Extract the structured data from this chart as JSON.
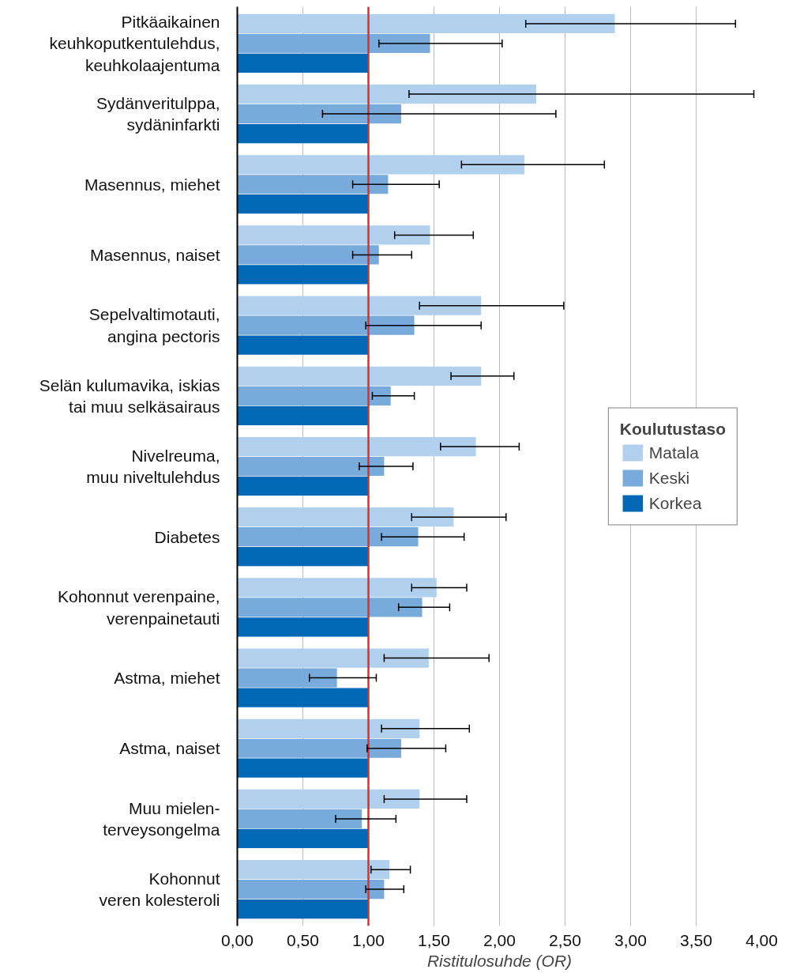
{
  "chart_data": {
    "type": "bar",
    "orientation": "horizontal",
    "xlabel": "Ristitulosuhde (OR)",
    "legend_title": "Koulutustaso",
    "legend": "right",
    "grid": "x",
    "categories": [
      "Pitkäaikainen\nkeuhkoputkentulehdus,\nkeuhkolaajentuma",
      "Sydänveritulppa,\nsydäninfarkti",
      "Masennus, miehet",
      "Masennus, naiset",
      "Sepelvaltimotauti,\nangina pectoris",
      "Selän kulumavika, iskias\ntai muu selkäsairaus",
      "Nivelreuma,\nmuu niveltulehdus",
      "Diabetes",
      "Kohonnut verenpaine,\nverenpainetauti",
      "Astma, miehet",
      "Astma, naiset",
      "Muu mielen-\nterveysongelma",
      "Kohonnut\nveren kolesteroli"
    ],
    "xlim": [
      0,
      4
    ],
    "xticks": [
      {
        "value": 0,
        "label": "0,00"
      },
      {
        "value": 0.5,
        "label": "0,50"
      },
      {
        "value": 1,
        "label": "1,00"
      },
      {
        "value": 1.5,
        "label": "1,50"
      },
      {
        "value": 2,
        "label": "2,00"
      },
      {
        "value": 2.5,
        "label": "2,50"
      },
      {
        "value": 3,
        "label": "3,00"
      },
      {
        "value": 3.5,
        "label": "3,50"
      },
      {
        "value": 4,
        "label": "4,00"
      }
    ],
    "ref_lines": [
      {
        "axis": "x",
        "value": 1,
        "label": null,
        "color": "#d9302a"
      }
    ],
    "series": [
      {
        "name": "Matala",
        "color": "#b0d0ee",
        "values": [
          2.88,
          2.28,
          2.19,
          1.47,
          1.86,
          1.86,
          1.82,
          1.65,
          1.52,
          1.46,
          1.39,
          1.39,
          1.16
        ],
        "errors": [
          [
            2.2,
            3.8
          ],
          [
            1.31,
            3.94
          ],
          [
            1.71,
            2.8
          ],
          [
            1.2,
            1.8
          ],
          [
            1.39,
            2.49
          ],
          [
            1.63,
            2.11
          ],
          [
            1.55,
            2.15
          ],
          [
            1.33,
            2.05
          ],
          [
            1.33,
            1.75
          ],
          [
            1.12,
            1.92
          ],
          [
            1.1,
            1.77
          ],
          [
            1.12,
            1.75
          ],
          [
            1.02,
            1.32
          ]
        ]
      },
      {
        "name": "Keski",
        "color": "#79aadc",
        "values": [
          1.47,
          1.25,
          1.15,
          1.08,
          1.35,
          1.17,
          1.12,
          1.38,
          1.41,
          0.76,
          1.25,
          0.95,
          1.12
        ],
        "errors": [
          [
            1.08,
            2.02
          ],
          [
            0.65,
            2.43
          ],
          [
            0.88,
            1.54
          ],
          [
            0.88,
            1.33
          ],
          [
            0.98,
            1.86
          ],
          [
            1.03,
            1.35
          ],
          [
            0.93,
            1.34
          ],
          [
            1.1,
            1.73
          ],
          [
            1.23,
            1.62
          ],
          [
            0.55,
            1.06
          ],
          [
            0.99,
            1.59
          ],
          [
            0.75,
            1.21
          ],
          [
            0.98,
            1.27
          ]
        ]
      },
      {
        "name": "Korkea",
        "color": "#0068b4",
        "values": [
          1,
          1,
          1,
          1,
          1,
          1,
          1,
          1,
          1,
          1,
          1,
          1,
          1
        ]
      }
    ]
  }
}
